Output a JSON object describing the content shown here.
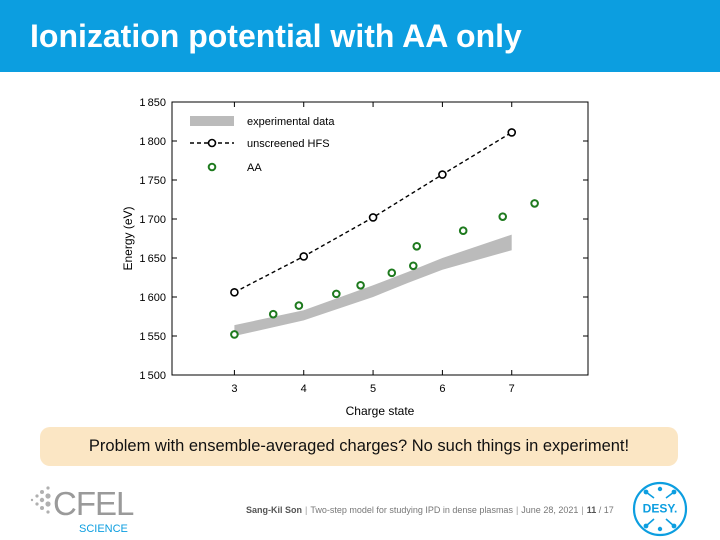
{
  "header": {
    "title": "Ionization potential with AA only",
    "color": "#0c9ee0"
  },
  "chart_data": {
    "type": "scatter",
    "title": "",
    "xlabel": "Charge state",
    "ylabel": "Energy (eV)",
    "xlim": [
      2.1,
      8.1
    ],
    "ylim": [
      1500,
      1850
    ],
    "xticks": [
      3,
      4,
      5,
      6,
      7
    ],
    "xtick_labels": [
      "3",
      "4",
      "5",
      "6",
      "7"
    ],
    "yticks": [
      1500,
      1550,
      1600,
      1650,
      1700,
      1750,
      1800,
      1850
    ],
    "ytick_labels": [
      "1500",
      "1550",
      "1600",
      "1650",
      "1700",
      "1750",
      "1800",
      "1850"
    ],
    "grid": false,
    "legend_position": "top-left",
    "series": [
      {
        "name": "experimental data",
        "style": "band",
        "color": "#bbbbbb",
        "x": [
          3,
          4,
          5,
          5.5,
          6,
          7
        ],
        "lower": [
          1550,
          1570,
          1600,
          1618,
          1635,
          1660
        ],
        "upper": [
          1564,
          1583,
          1615,
          1632,
          1650,
          1680
        ]
      },
      {
        "name": "unscreened HFS",
        "style": "dashed-line-circles",
        "color": "#000000",
        "x": [
          3,
          4,
          5,
          6,
          7
        ],
        "y": [
          1606,
          1652,
          1702,
          1757,
          1811
        ]
      },
      {
        "name": "AA",
        "style": "circles",
        "color": "#1e7a1e",
        "x": [
          3.0,
          3.56,
          3.93,
          4.47,
          4.82,
          5.27,
          5.58,
          5.63,
          6.3,
          6.87,
          7.33
        ],
        "y": [
          1552,
          1578,
          1589,
          1604,
          1615,
          1631,
          1640,
          1665,
          1685,
          1703,
          1720
        ]
      }
    ]
  },
  "callout": {
    "text": "Problem with ensemble-averaged charges? No such things in experiment!",
    "color": "#fbe6c4"
  },
  "logo": {
    "name": "CFEL",
    "sub": "SCIENCE",
    "icon": "cfel-logo-icon"
  },
  "footer": {
    "author": "Sang-Kil Son",
    "talk": "Two-step model for studying IPD in dense plasmas",
    "date": "June 28, 2021",
    "page": "11",
    "total": "/ 17"
  },
  "desy": {
    "label": "DESY.",
    "icon": "desy-logo-icon",
    "color": "#0c9ee0"
  }
}
